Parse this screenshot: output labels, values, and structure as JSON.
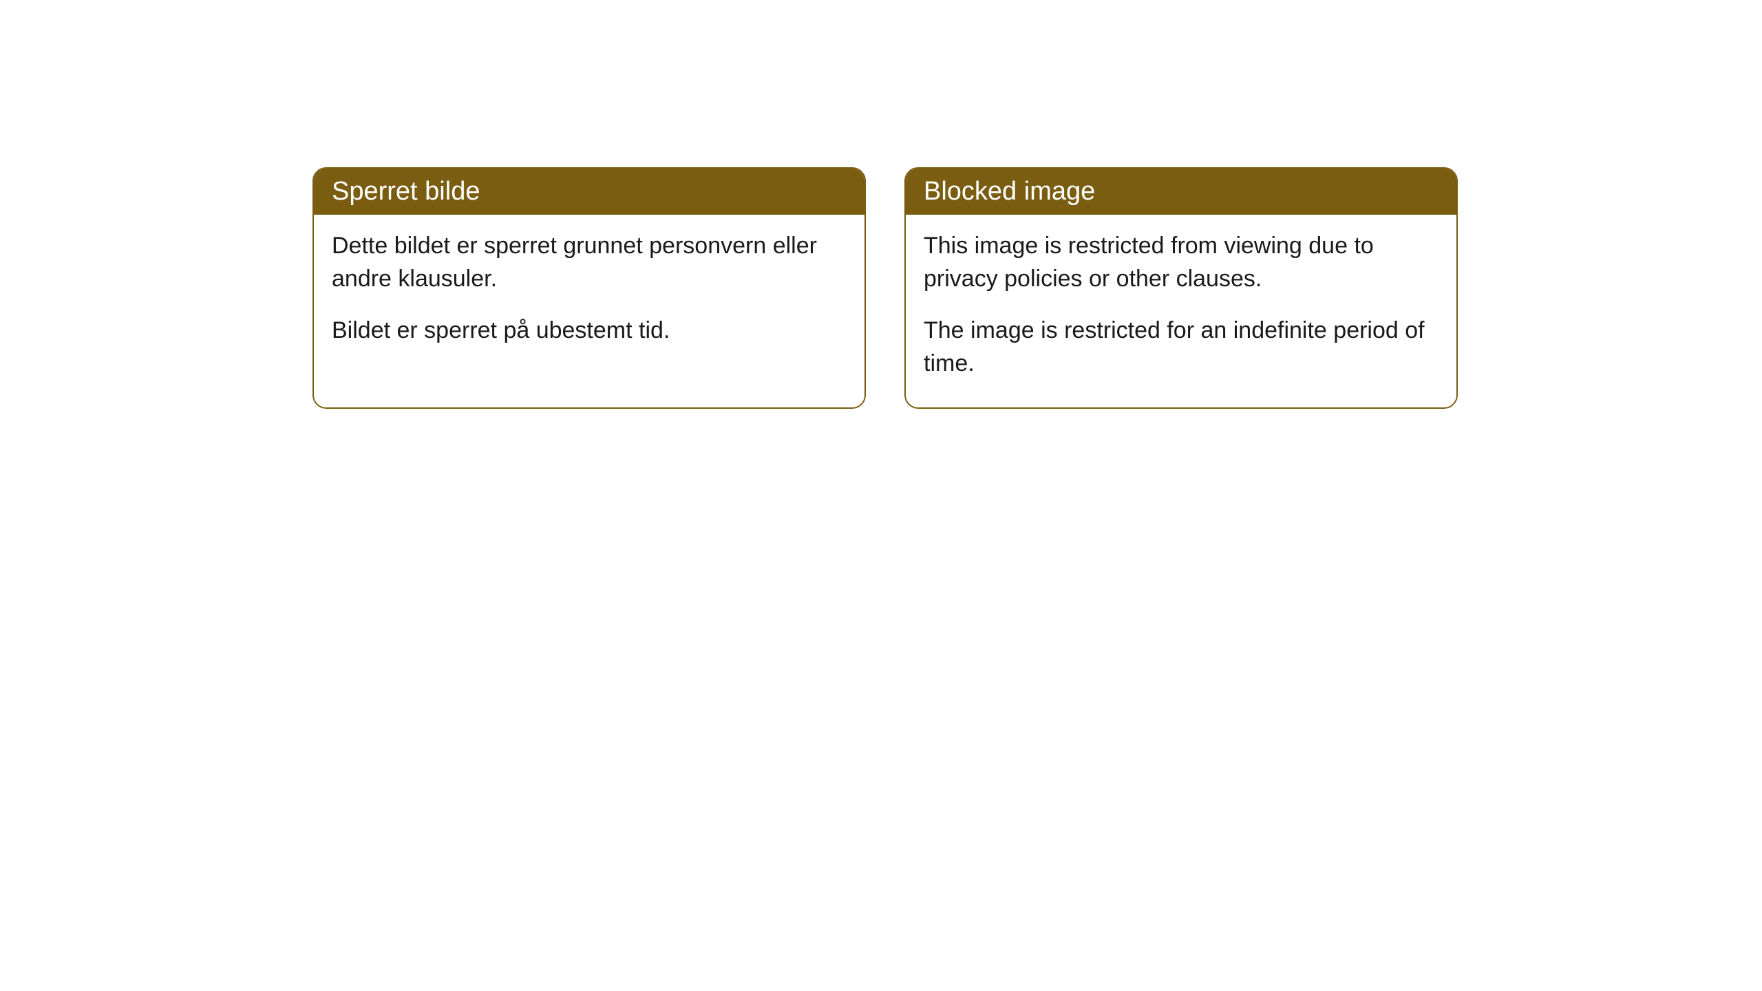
{
  "cards": [
    {
      "title": "Sperret bilde",
      "paragraph1": "Dette bildet er sperret grunnet personvern eller andre klausuler.",
      "paragraph2": "Bildet er sperret på ubestemt tid."
    },
    {
      "title": "Blocked image",
      "paragraph1": "This image is restricted from viewing due to privacy policies or other clauses.",
      "paragraph2": "The image is restricted for an indefinite period of time."
    }
  ],
  "styling": {
    "header_background": "#7a5d11",
    "header_text_color": "#ffffff",
    "card_border_color": "#7a5d11",
    "card_background": "#ffffff",
    "body_text_color": "#1a1a1a",
    "border_radius": 20,
    "header_fontsize": 38,
    "body_fontsize": 34
  }
}
